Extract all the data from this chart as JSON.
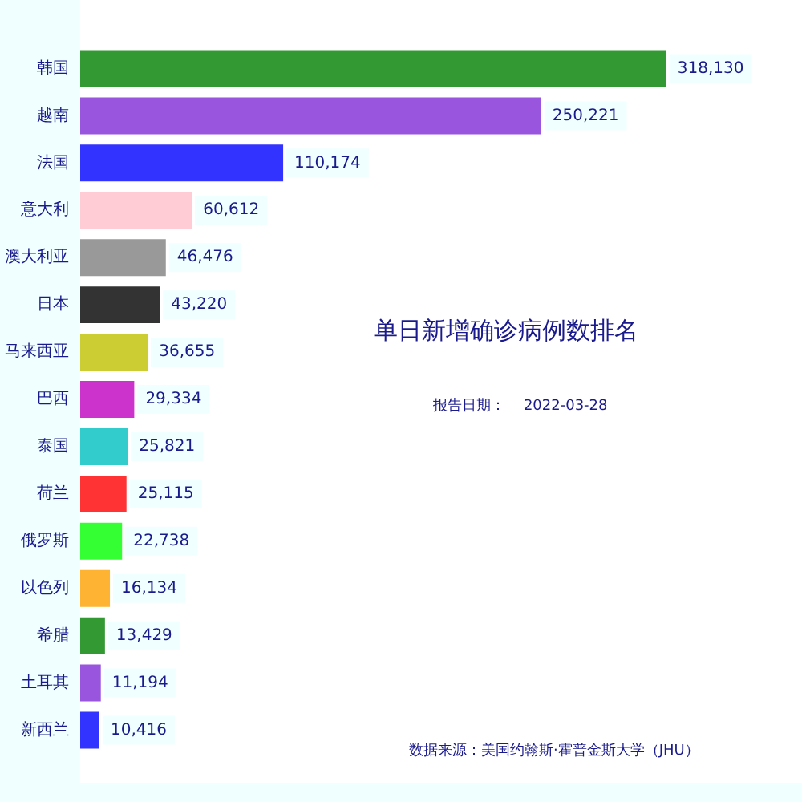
{
  "chart_data": {
    "type": "bar",
    "orientation": "horizontal",
    "title": "单日新增确诊病例数排名",
    "categories": [
      "韩国",
      "越南",
      "法国",
      "意大利",
      "澳大利亚",
      "日本",
      "马来西亚",
      "巴西",
      "泰国",
      "荷兰",
      "俄罗斯",
      "以色列",
      "希腊",
      "土耳其",
      "新西兰"
    ],
    "values": [
      318130,
      250221,
      110174,
      60612,
      46476,
      43220,
      36655,
      29334,
      25821,
      25115,
      22738,
      16134,
      13429,
      11194,
      10416
    ],
    "value_labels": [
      "318,130",
      "250,221",
      "110,174",
      "60,612",
      "46,476",
      "43,220",
      "36,655",
      "29,334",
      "25,821",
      "25,115",
      "22,738",
      "16,134",
      "13,429",
      "11,194",
      "10,416"
    ],
    "colors": [
      "#339933",
      "#9955dd",
      "#3333ff",
      "#ffccd5",
      "#999999",
      "#333333",
      "#cccc33",
      "#cc33cc",
      "#33cccc",
      "#ff3333",
      "#33ff33",
      "#ffb333",
      "#339933",
      "#9955dd",
      "#3333ff"
    ],
    "grid": false,
    "legend": false,
    "annotations": [
      "报告日期：    2022-03-28",
      "数据来源：美国约翰斯·霍普金斯大学（JHU）"
    ]
  }
}
